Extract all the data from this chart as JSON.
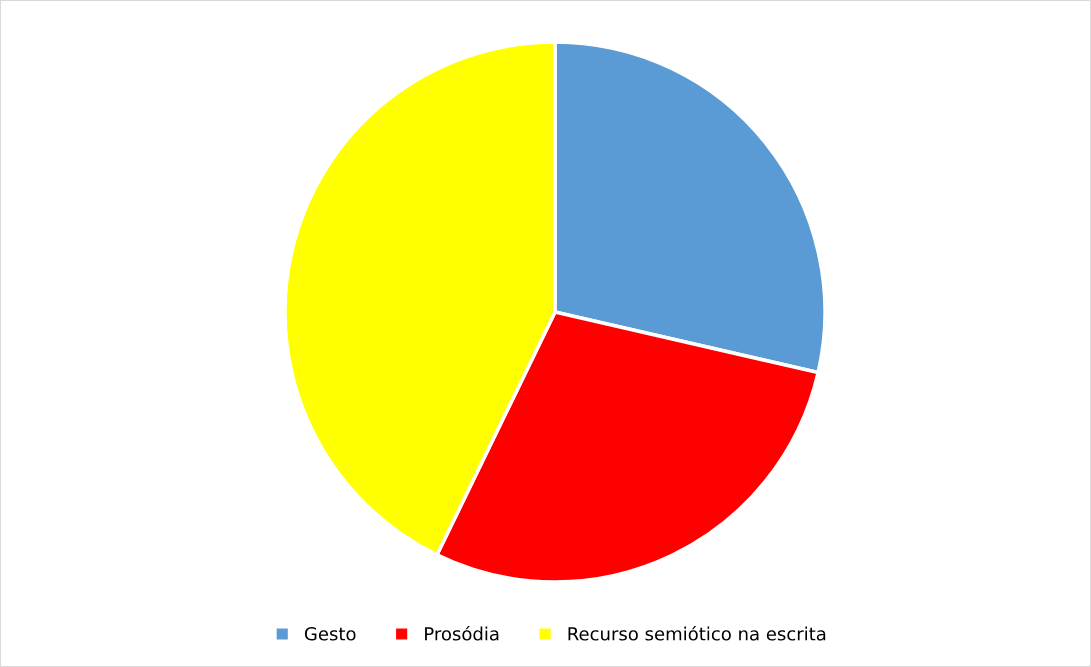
{
  "chart_data": {
    "type": "pie",
    "categories": [
      "Gesto",
      "Prosódia",
      "Recurso semiótico na escrita"
    ],
    "values": [
      28.6,
      28.6,
      42.8
    ],
    "colors": [
      "#5b9bd5",
      "#ff0000",
      "#ffff00"
    ],
    "legend": "bottom"
  }
}
